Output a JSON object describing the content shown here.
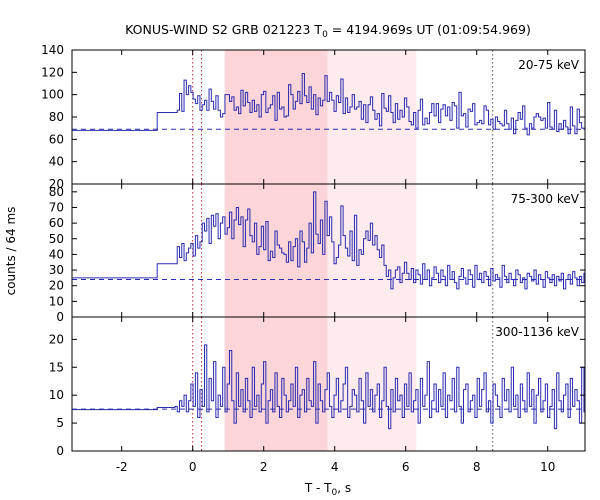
{
  "chart_data": {
    "type": "line",
    "title": "KONUS-WIND S2 GRB 021223 T",
    "title_sub": "0",
    "title_rest": " = 4194.969s UT (01:09:54.969)",
    "xlabel": "T - T",
    "xlabel_sub": "0",
    "xlabel_rest": ", s",
    "ylabel": "counts / 64 ms",
    "xlim": [
      -3.4,
      11.05
    ],
    "x_ticks": [
      -2,
      0,
      2,
      4,
      6,
      8,
      10
    ],
    "x_tick_labels": [
      "-2",
      "0",
      "2",
      "4",
      "6",
      "8",
      "10"
    ],
    "grid": false,
    "dotted_lines_x": [
      0.0,
      0.25,
      8.45
    ],
    "shaded_regions": [
      {
        "start": 0.9,
        "end": 3.8,
        "color": "#fbd5d8"
      },
      {
        "start": 3.8,
        "end": 6.3,
        "color": "#fdebed"
      }
    ],
    "colors": {
      "line": "#2b2bb0",
      "dashed_bkg": "#2b2bb0",
      "dotted": "#b0233a"
    },
    "panels": [
      {
        "label": "20-75 keV",
        "ylim": [
          20,
          140
        ],
        "y_ticks": [
          20,
          40,
          60,
          80,
          100,
          120,
          140
        ],
        "y_tick_labels": [
          "20",
          "40",
          "60",
          "80",
          "100",
          "120",
          "140"
        ],
        "background": 69,
        "pre_trigger": [
          {
            "start": -3.4,
            "end": -1.0,
            "value": 68
          },
          {
            "start": -1.0,
            "end": -0.5,
            "value": 84
          }
        ],
        "x_step": 0.064,
        "x_start": -0.5,
        "values": [
          84,
          86,
          101,
          85,
          113,
          100,
          108,
          102,
          96,
          92,
          99,
          86,
          91,
          95,
          86,
          105,
          94,
          87,
          99,
          86,
          80,
          83,
          100,
          100,
          94,
          98,
          86,
          89,
          83,
          104,
          90,
          102,
          93,
          84,
          95,
          85,
          91,
          80,
          100,
          103,
          84,
          88,
          91,
          99,
          77,
          102,
          87,
          89,
          80,
          81,
          109,
          100,
          87,
          94,
          103,
          92,
          119,
          99,
          93,
          107,
          87,
          100,
          82,
          97,
          90,
          95,
          117,
          94,
          102,
          95,
          85,
          99,
          93,
          114,
          83,
          97,
          84,
          89,
          100,
          87,
          89,
          94,
          78,
          91,
          75,
          91,
          98,
          86,
          78,
          83,
          72,
          101,
          88,
          85,
          99,
          84,
          75,
          92,
          78,
          86,
          80,
          97,
          89,
          76,
          73,
          84,
          70,
          86,
          96,
          73,
          79,
          74,
          84,
          92,
          81,
          92,
          75,
          87,
          91,
          81,
          89,
          77,
          93,
          90,
          70,
          102,
          81,
          83,
          71,
          87,
          85,
          92,
          73,
          75,
          77,
          74,
          90,
          86,
          73,
          78,
          69,
          80,
          76,
          74,
          72,
          86,
          74,
          69,
          79,
          65,
          77,
          84,
          78,
          90,
          70,
          64,
          74,
          70,
          80,
          83,
          80,
          77,
          79,
          70,
          93,
          71,
          69,
          86,
          67,
          74,
          69,
          77,
          71,
          65,
          89,
          72,
          65,
          87,
          75,
          70,
          69,
          63,
          79,
          72,
          75,
          64,
          76,
          59,
          78,
          72,
          70,
          69,
          71,
          65,
          75,
          60,
          74,
          66,
          71,
          71,
          63,
          52,
          74,
          69
        ]
      },
      {
        "label": "75-300 keV",
        "ylim": [
          0,
          85
        ],
        "y_ticks": [
          0,
          10,
          20,
          30,
          40,
          50,
          60,
          70,
          80
        ],
        "y_tick_labels": [
          "0",
          "10",
          "20",
          "30",
          "40",
          "50",
          "60",
          "70",
          "80"
        ],
        "background": 24,
        "pre_trigger": [
          {
            "start": -3.4,
            "end": -1.0,
            "value": 25
          },
          {
            "start": -1.0,
            "end": -0.5,
            "value": 34
          }
        ],
        "x_step": 0.064,
        "x_start": -0.5,
        "values": [
          34,
          45,
          38,
          47,
          36,
          41,
          44,
          47,
          39,
          52,
          44,
          48,
          60,
          55,
          63,
          47,
          65,
          58,
          66,
          50,
          60,
          64,
          53,
          57,
          67,
          50,
          62,
          70,
          59,
          64,
          45,
          62,
          69,
          52,
          48,
          60,
          40,
          45,
          58,
          43,
          61,
          36,
          42,
          38,
          55,
          46,
          44,
          41,
          40,
          35,
          48,
          36,
          45,
          50,
          32,
          55,
          48,
          35,
          44,
          60,
          41,
          80,
          53,
          47,
          62,
          40,
          74,
          52,
          64,
          48,
          34,
          38,
          46,
          71,
          52,
          44,
          39,
          55,
          36,
          65,
          33,
          43,
          40,
          50,
          55,
          49,
          60,
          46,
          52,
          43,
          38,
          46,
          33,
          26,
          30,
          18,
          25,
          30,
          32,
          22,
          28,
          35,
          28,
          24,
          31,
          22,
          30,
          27,
          21,
          34,
          24,
          30,
          20,
          25,
          32,
          28,
          22,
          30,
          26,
          20,
          33,
          24,
          29,
          22,
          18,
          26,
          31,
          25,
          21,
          30,
          27,
          19,
          33,
          24,
          28,
          22,
          29,
          26,
          20,
          31,
          23,
          27,
          25,
          19,
          33,
          26,
          22,
          28,
          24,
          20,
          30,
          27,
          22,
          25,
          18,
          28,
          26,
          23,
          30,
          21,
          27,
          24,
          19,
          29,
          25,
          22,
          27,
          20,
          26,
          23,
          28,
          18,
          24,
          27,
          21,
          29,
          25,
          20,
          26,
          22,
          28,
          17,
          24,
          26,
          21,
          28,
          23,
          25,
          22,
          29,
          18,
          26,
          24,
          22,
          28,
          20,
          25,
          23,
          29,
          21,
          27,
          24,
          20,
          26,
          22
        ]
      },
      {
        "label": "300-1136 keV",
        "ylim": [
          0,
          24
        ],
        "y_ticks": [
          0,
          5,
          10,
          15,
          20
        ],
        "y_tick_labels": [
          "0",
          "5",
          "10",
          "15",
          "20"
        ],
        "background": 7.5,
        "pre_trigger": [
          {
            "start": -3.4,
            "end": -1.0,
            "value": 7.4
          },
          {
            "start": -1.0,
            "end": -0.5,
            "value": 7.8
          }
        ],
        "x_step": 0.064,
        "x_start": -0.5,
        "values": [
          8,
          7,
          9,
          8,
          10,
          7,
          9,
          12,
          8,
          14,
          6,
          11,
          8,
          19,
          7,
          13,
          9,
          16,
          6,
          10,
          8,
          15,
          7,
          12,
          18,
          9,
          5,
          14,
          8,
          11,
          7,
          13,
          9,
          6,
          15,
          8,
          10,
          7,
          12,
          16,
          5,
          9,
          11,
          7,
          14,
          8,
          6,
          13,
          10,
          7,
          9,
          12,
          8,
          15,
          6,
          10,
          11,
          7,
          13,
          9,
          8,
          16,
          5,
          12,
          9,
          7,
          11,
          14,
          8,
          6,
          10,
          13,
          7,
          9,
          12,
          15,
          6,
          8,
          11,
          10,
          7,
          13,
          9,
          5,
          14,
          8,
          11,
          7,
          10,
          12,
          6,
          9,
          15,
          8,
          4,
          11,
          7,
          13,
          9,
          10,
          6,
          12,
          8,
          14,
          7,
          9,
          11,
          5,
          13,
          8,
          10,
          16,
          6,
          9,
          12,
          7,
          11,
          8,
          14,
          6,
          10,
          9,
          13,
          7,
          15,
          8,
          5,
          11,
          12,
          7,
          9,
          10,
          6,
          13,
          8,
          11,
          14,
          7,
          9,
          5,
          12,
          10,
          8,
          6,
          13,
          9,
          11,
          7,
          15,
          8,
          10,
          6,
          12,
          9,
          7,
          14,
          8,
          11,
          5,
          10,
          13,
          7,
          9,
          12,
          6,
          8,
          11,
          4,
          14,
          9,
          7,
          10,
          12,
          6,
          13,
          8,
          11,
          9,
          5,
          15,
          7,
          10,
          8,
          12,
          6,
          9,
          14,
          7,
          11,
          8,
          10,
          3,
          13,
          9,
          6,
          12,
          8
        ]
      }
    ]
  }
}
